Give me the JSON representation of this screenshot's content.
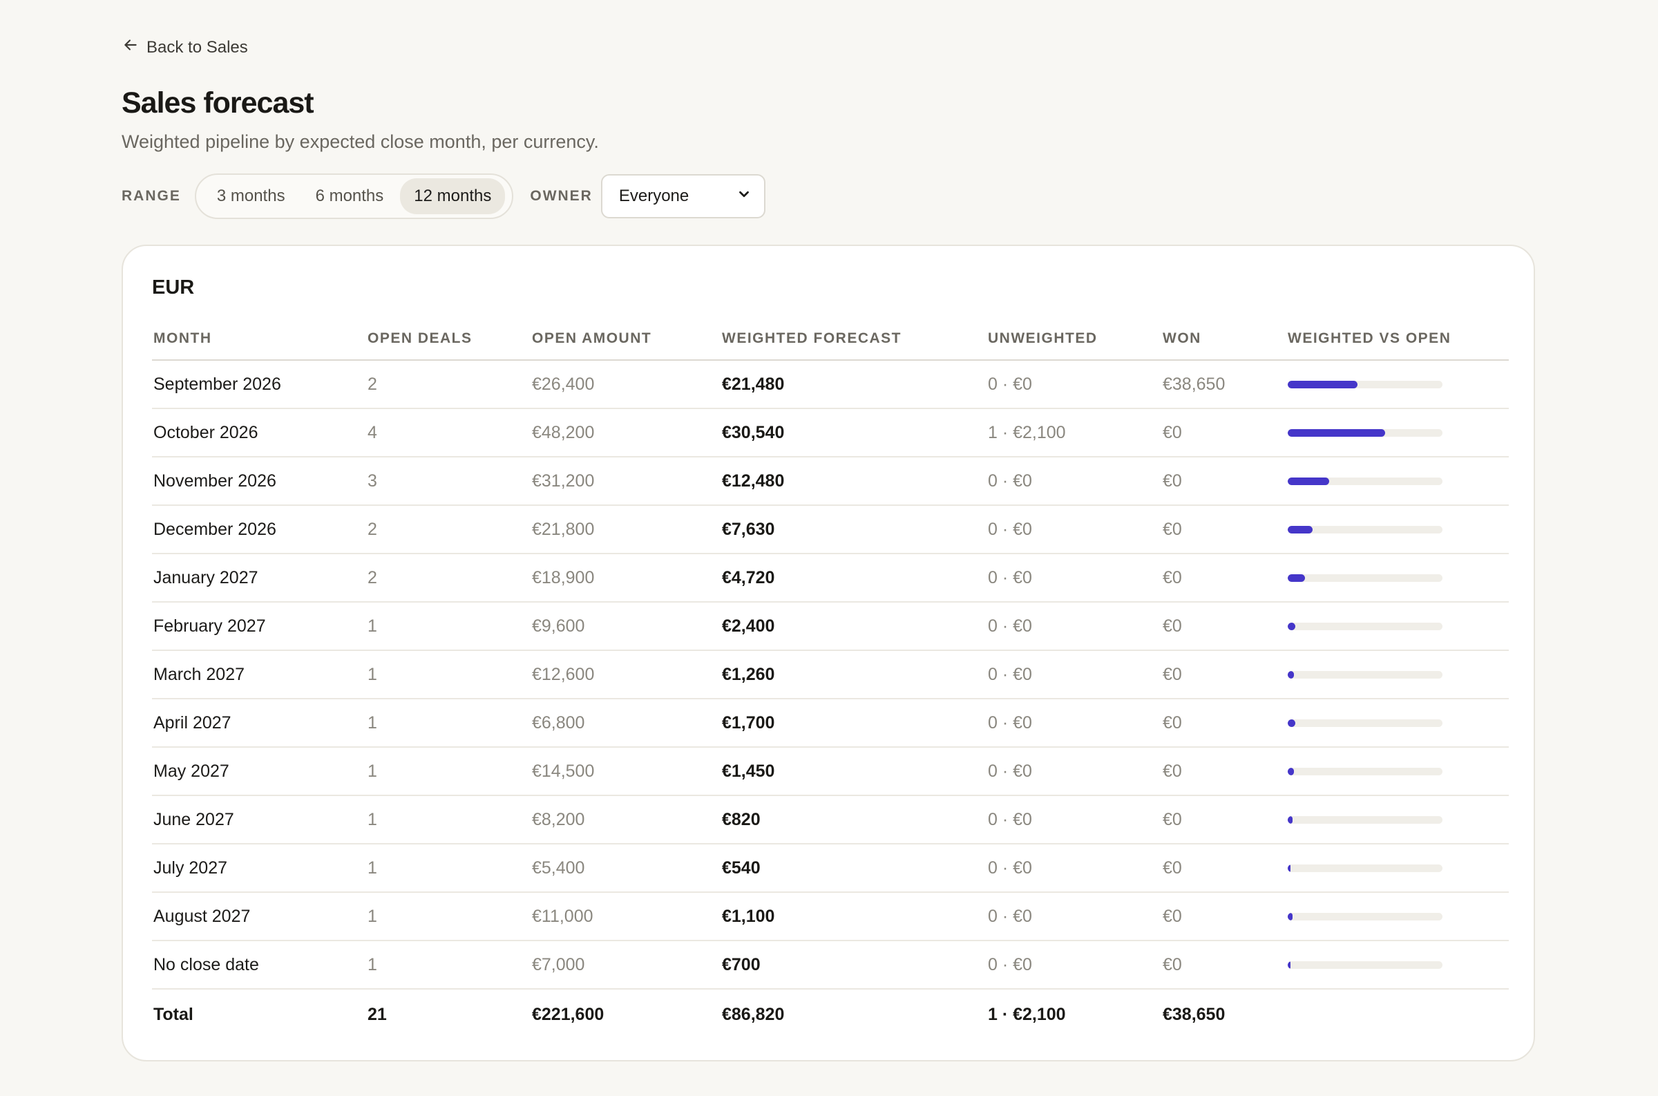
{
  "nav": {
    "back_label": "Back to Sales"
  },
  "header": {
    "title": "Sales forecast",
    "subtitle": "Weighted pipeline by expected close month, per currency."
  },
  "controls": {
    "range_label": "RANGE",
    "range_options": [
      "3 months",
      "6 months",
      "12 months"
    ],
    "range_selected": "12 months",
    "owner_label": "OWNER",
    "owner_value": "Everyone"
  },
  "colors": {
    "accent": "#4536c9",
    "track": "#f0eee8"
  },
  "table": {
    "currency": "EUR",
    "columns": [
      "MONTH",
      "OPEN DEALS",
      "OPEN AMOUNT",
      "WEIGHTED FORECAST",
      "UNWEIGHTED",
      "WON",
      "WEIGHTED VS OPEN"
    ],
    "rows": [
      {
        "month": "September 2026",
        "open_deals": "2",
        "open_amount": "€26,400",
        "weighted": "€21,480",
        "unweighted": "0 · €0",
        "won": "€38,650",
        "ratio": 0.45
      },
      {
        "month": "October 2026",
        "open_deals": "4",
        "open_amount": "€48,200",
        "weighted": "€30,540",
        "unweighted": "1 · €2,100",
        "won": "€0",
        "ratio": 0.63
      },
      {
        "month": "November 2026",
        "open_deals": "3",
        "open_amount": "€31,200",
        "weighted": "€12,480",
        "unweighted": "0 · €0",
        "won": "€0",
        "ratio": 0.27
      },
      {
        "month": "December 2026",
        "open_deals": "2",
        "open_amount": "€21,800",
        "weighted": "€7,630",
        "unweighted": "0 · €0",
        "won": "€0",
        "ratio": 0.16
      },
      {
        "month": "January 2027",
        "open_deals": "2",
        "open_amount": "€18,900",
        "weighted": "€4,720",
        "unweighted": "0 · €0",
        "won": "€0",
        "ratio": 0.11
      },
      {
        "month": "February 2027",
        "open_deals": "1",
        "open_amount": "€9,600",
        "weighted": "€2,400",
        "unweighted": "0 · €0",
        "won": "€0",
        "ratio": 0.05
      },
      {
        "month": "March 2027",
        "open_deals": "1",
        "open_amount": "€12,600",
        "weighted": "€1,260",
        "unweighted": "0 · €0",
        "won": "€0",
        "ratio": 0.04
      },
      {
        "month": "April 2027",
        "open_deals": "1",
        "open_amount": "€6,800",
        "weighted": "€1,700",
        "unweighted": "0 · €0",
        "won": "€0",
        "ratio": 0.05
      },
      {
        "month": "May 2027",
        "open_deals": "1",
        "open_amount": "€14,500",
        "weighted": "€1,450",
        "unweighted": "0 · €0",
        "won": "€0",
        "ratio": 0.04
      },
      {
        "month": "June 2027",
        "open_deals": "1",
        "open_amount": "€8,200",
        "weighted": "€820",
        "unweighted": "0 · €0",
        "won": "€0",
        "ratio": 0.03
      },
      {
        "month": "July 2027",
        "open_deals": "1",
        "open_amount": "€5,400",
        "weighted": "€540",
        "unweighted": "0 · €0",
        "won": "€0",
        "ratio": 0.02
      },
      {
        "month": "August 2027",
        "open_deals": "1",
        "open_amount": "€11,000",
        "weighted": "€1,100",
        "unweighted": "0 · €0",
        "won": "€0",
        "ratio": 0.03
      },
      {
        "month": "No close date",
        "open_deals": "1",
        "open_amount": "€7,000",
        "weighted": "€700",
        "unweighted": "0 · €0",
        "won": "€0",
        "ratio": 0.02
      }
    ],
    "total": {
      "label": "Total",
      "open_deals": "21",
      "open_amount": "€221,600",
      "weighted": "€86,820",
      "unweighted": "1 · €2,100",
      "won": "€38,650"
    }
  }
}
